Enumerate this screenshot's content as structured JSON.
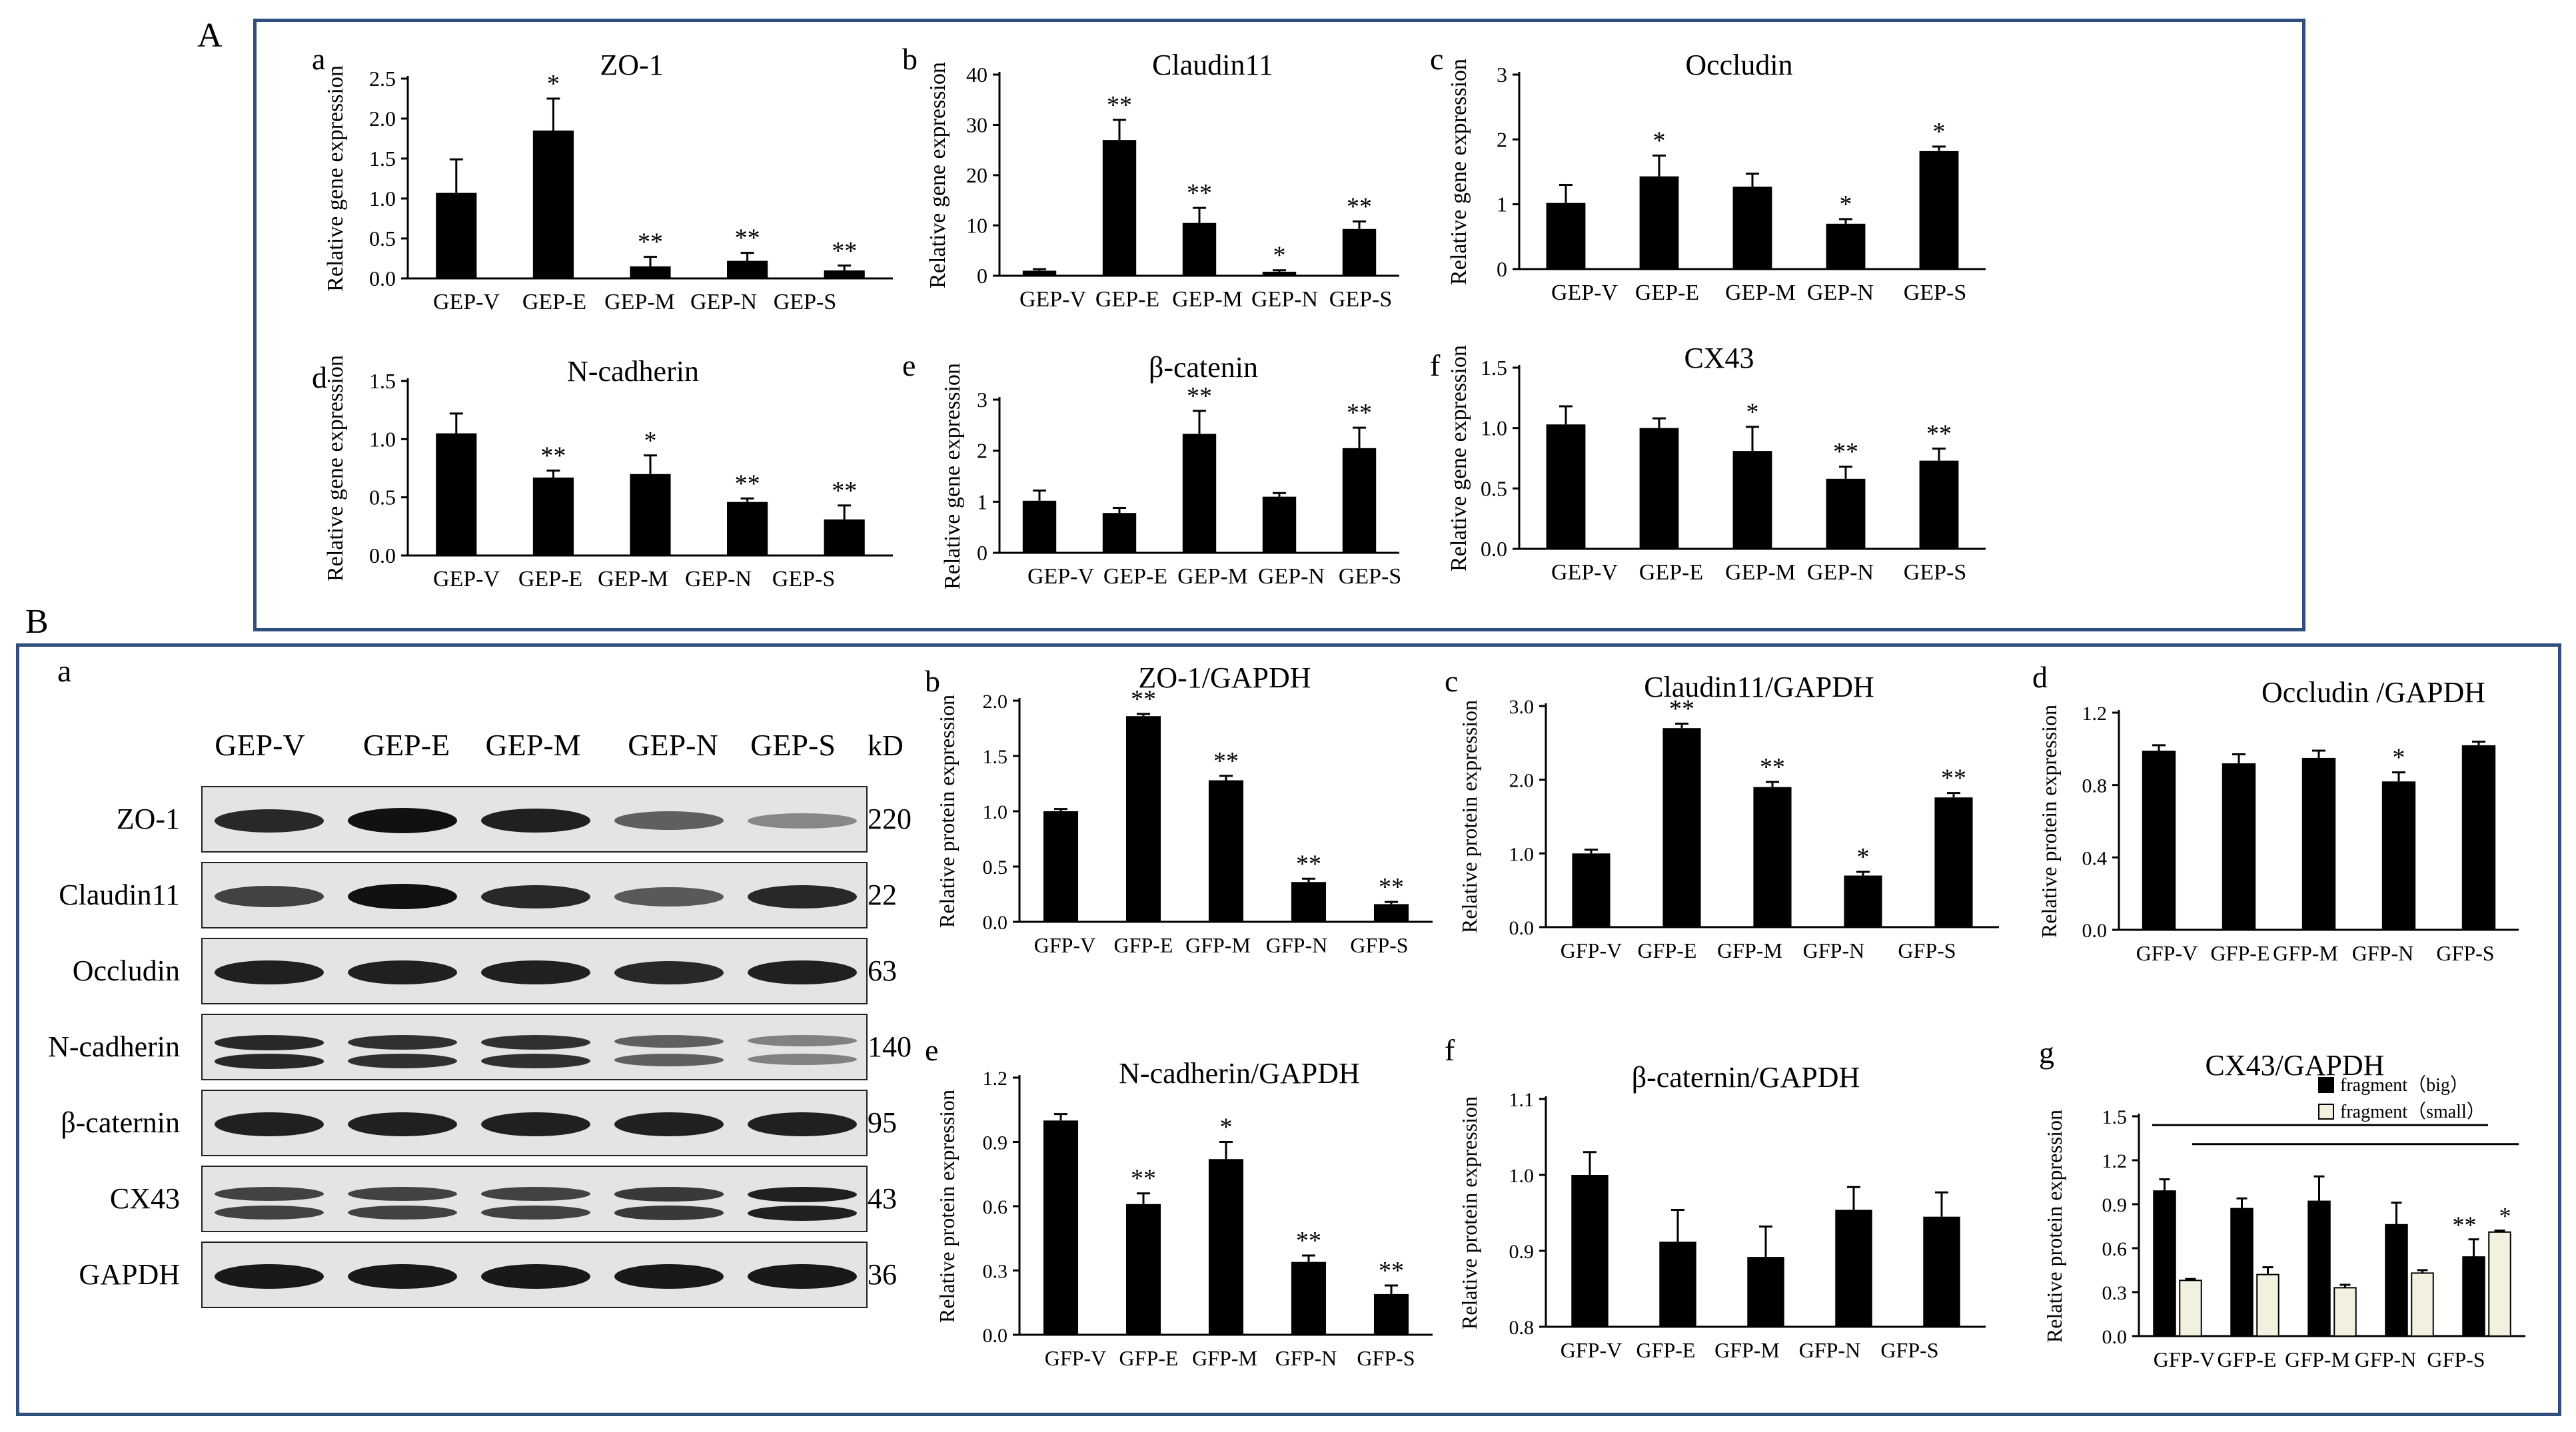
{
  "sections": {
    "A": {
      "label": "A"
    },
    "B": {
      "label": "B"
    }
  },
  "blot": {
    "panel_letter": "a",
    "lanes": [
      "GEP-V",
      "GEP-E",
      "GEP-M",
      "GEP-N",
      "GEP-S"
    ],
    "kd_header": "kD",
    "rows": [
      {
        "name": "ZO-1",
        "kd": "220",
        "intensity": [
          0.85,
          1.0,
          0.9,
          0.5,
          0.25
        ],
        "double": false
      },
      {
        "name": "Claudin11",
        "kd": "22",
        "intensity": [
          0.7,
          1.0,
          0.85,
          0.55,
          0.85
        ],
        "double": false
      },
      {
        "name": "Occludin",
        "kd": "63",
        "intensity": [
          0.9,
          0.9,
          0.9,
          0.85,
          0.9
        ],
        "double": false
      },
      {
        "name": "N-cadherin",
        "kd": "140",
        "intensity": [
          0.85,
          0.8,
          0.8,
          0.5,
          0.3
        ],
        "double": true
      },
      {
        "name": "β-caternin",
        "kd": "95",
        "intensity": [
          0.9,
          0.9,
          0.9,
          0.9,
          0.9
        ],
        "double": false
      },
      {
        "name": "CX43",
        "kd": "43",
        "intensity": [
          0.7,
          0.7,
          0.7,
          0.75,
          0.9
        ],
        "double": true
      },
      {
        "name": "GAPDH",
        "kd": "36",
        "intensity": [
          0.95,
          0.95,
          0.95,
          0.95,
          0.95
        ],
        "double": false
      }
    ]
  },
  "colors": {
    "bar": "#000000",
    "bar_light": "#f2f1e0",
    "frame": "#2f4f7f",
    "blot_bg": "#e4e4e4"
  },
  "chart_data": [
    {
      "id": "Aa",
      "type": "bar",
      "panel_letter": "a",
      "title": "ZO-1",
      "ylabel": "Relative gene expression",
      "categories": [
        "GEP-V",
        "GEP-E",
        "GEP-M",
        "GEP-N",
        "GEP-S"
      ],
      "values": [
        1.07,
        1.85,
        0.15,
        0.22,
        0.1
      ],
      "errors": [
        0.42,
        0.4,
        0.12,
        0.1,
        0.06
      ],
      "sig": [
        "",
        "*",
        "**",
        "**",
        "**"
      ],
      "ylim": [
        0,
        2.5
      ],
      "yticks": [
        "0.0",
        "0.5",
        "1.0",
        "1.5",
        "2.0",
        "2.5"
      ]
    },
    {
      "id": "Ab",
      "type": "bar",
      "panel_letter": "b",
      "title": "Claudin11",
      "ylabel": "Relative gene expression",
      "categories": [
        "GEP-V",
        "GEP-E",
        "GEP-M",
        "GEP-N",
        "GEP-S"
      ],
      "values": [
        1,
        27,
        10.5,
        0.8,
        9.3
      ],
      "errors": [
        0.3,
        4,
        3,
        0.3,
        1.5
      ],
      "sig": [
        "",
        "**",
        "**",
        "*",
        "**"
      ],
      "ylim": [
        0,
        40
      ],
      "yticks": [
        "0",
        "10",
        "20",
        "30",
        "40"
      ]
    },
    {
      "id": "Ac",
      "type": "bar",
      "panel_letter": "c",
      "title": "Occludin",
      "ylabel": "Relative gene expression",
      "categories": [
        "GEP-V",
        "GEP-E",
        "GEP-M",
        "GEP-N",
        "GEP-S"
      ],
      "values": [
        1.02,
        1.43,
        1.27,
        0.7,
        1.82
      ],
      "errors": [
        0.28,
        0.32,
        0.2,
        0.07,
        0.07
      ],
      "sig": [
        "",
        "*",
        "",
        "*",
        "*"
      ],
      "ylim": [
        0,
        3
      ],
      "yticks": [
        "0",
        "1",
        "2",
        "3"
      ]
    },
    {
      "id": "Ad",
      "type": "bar",
      "panel_letter": "d",
      "title": "N-cadherin",
      "ylabel": "Relative gene expression",
      "categories": [
        "GEP-V",
        "GEP-E",
        "GEP-M",
        "GEP-N",
        "GEP-S"
      ],
      "values": [
        1.05,
        0.67,
        0.7,
        0.46,
        0.31
      ],
      "errors": [
        0.17,
        0.06,
        0.16,
        0.03,
        0.12
      ],
      "sig": [
        "",
        "**",
        "*",
        "**",
        "**"
      ],
      "ylim": [
        0,
        1.5
      ],
      "yticks": [
        "0.0",
        "0.5",
        "1.0",
        "1.5"
      ]
    },
    {
      "id": "Ae",
      "type": "bar",
      "panel_letter": "e",
      "title": "β-catenin",
      "ylabel": "Relative gene expression",
      "categories": [
        "GEP-V",
        "GEP-E",
        "GEP-M",
        "GEP-N",
        "GEP-S"
      ],
      "values": [
        1.02,
        0.78,
        2.33,
        1.1,
        2.05
      ],
      "errors": [
        0.2,
        0.1,
        0.45,
        0.07,
        0.4
      ],
      "sig": [
        "",
        "",
        "**",
        "",
        "**"
      ],
      "ylim": [
        0,
        3
      ],
      "yticks": [
        "0",
        "1",
        "2",
        "3"
      ]
    },
    {
      "id": "Af",
      "type": "bar",
      "panel_letter": "f",
      "title": "CX43",
      "ylabel": "Relative gene expression",
      "categories": [
        "GEP-V",
        "GEP-E",
        "GEP-M",
        "GEP-N",
        "GEP-S"
      ],
      "values": [
        1.03,
        1.0,
        0.81,
        0.58,
        0.73
      ],
      "errors": [
        0.15,
        0.08,
        0.2,
        0.1,
        0.1
      ],
      "sig": [
        "",
        "",
        "*",
        "**",
        "**"
      ],
      "ylim": [
        0,
        1.5
      ],
      "yticks": [
        "0.0",
        "0.5",
        "1.0",
        "1.5"
      ]
    },
    {
      "id": "Bb",
      "type": "bar",
      "panel_letter": "b",
      "title": "ZO-1/GAPDH",
      "ylabel": "Relative protein expression",
      "categories": [
        "GFP-V",
        "GFP-E",
        "GFP-M",
        "GFP-N",
        "GFP-S"
      ],
      "values": [
        1.0,
        1.86,
        1.28,
        0.36,
        0.16
      ],
      "errors": [
        0.02,
        0.02,
        0.04,
        0.03,
        0.02
      ],
      "sig": [
        "",
        "**",
        "**",
        "**",
        "**"
      ],
      "ylim": [
        0,
        2.0
      ],
      "yticks": [
        "0.0",
        "0.5",
        "1.0",
        "1.5",
        "2.0"
      ]
    },
    {
      "id": "Bc",
      "type": "bar",
      "panel_letter": "c",
      "title": "Claudin11/GAPDH",
      "ylabel": "Relative protein expression",
      "categories": [
        "GFP-V",
        "GFP-E",
        "GFP-M",
        "GFP-N",
        "GFP-S"
      ],
      "values": [
        1.0,
        2.7,
        1.9,
        0.7,
        1.76
      ],
      "errors": [
        0.05,
        0.06,
        0.07,
        0.05,
        0.06
      ],
      "sig": [
        "",
        "**",
        "**",
        "*",
        "**"
      ],
      "ylim": [
        0,
        3.0
      ],
      "yticks": [
        "0.0",
        "1.0",
        "2.0",
        "3.0"
      ]
    },
    {
      "id": "Bd",
      "type": "bar",
      "panel_letter": "d",
      "title": "Occludin /GAPDH",
      "ylabel": "Relative protein expression",
      "categories": [
        "GFP-V",
        "GFP-E",
        "GFP-M",
        "GFP-N",
        "GFP-S"
      ],
      "values": [
        0.99,
        0.92,
        0.95,
        0.82,
        1.02
      ],
      "errors": [
        0.03,
        0.05,
        0.04,
        0.05,
        0.02
      ],
      "sig": [
        "",
        "",
        "",
        "*",
        ""
      ],
      "ylim": [
        0,
        1.2
      ],
      "yticks": [
        "0.0",
        "0.4",
        "0.8",
        "1.2"
      ]
    },
    {
      "id": "Be",
      "type": "bar",
      "panel_letter": "e",
      "title": "N-cadherin/GAPDH",
      "ylabel": "Relative protein expression",
      "categories": [
        "GFP-V",
        "GFP-E",
        "GFP-M",
        "GFP-N",
        "GFP-S"
      ],
      "values": [
        1.0,
        0.61,
        0.82,
        0.34,
        0.19
      ],
      "errors": [
        0.03,
        0.05,
        0.08,
        0.03,
        0.04
      ],
      "sig": [
        "",
        "**",
        "*",
        "**",
        "**"
      ],
      "ylim": [
        0,
        1.2
      ],
      "yticks": [
        "0.0",
        "0.3",
        "0.6",
        "0.9",
        "1.2"
      ]
    },
    {
      "id": "Bf",
      "type": "bar",
      "panel_letter": "f",
      "title": "β-caternin/GAPDH",
      "ylabel": "Relative protein expression",
      "categories": [
        "GFP-V",
        "GFP-E",
        "GFP-M",
        "GFP-N",
        "GFP-S"
      ],
      "values": [
        1.0,
        0.912,
        0.892,
        0.954,
        0.945
      ],
      "errors": [
        0.03,
        0.042,
        0.04,
        0.03,
        0.032
      ],
      "sig": [
        "",
        "",
        "",
        "",
        ""
      ],
      "ylim": [
        0.8,
        1.1
      ],
      "yticks": [
        "0.8",
        "0.9",
        "1.0",
        "1.1"
      ]
    },
    {
      "id": "Bg",
      "type": "groupbar",
      "panel_letter": "g",
      "title": "CX43/GAPDH",
      "ylabel": "Relative protein expression",
      "categories": [
        "GFP-V",
        "GFP-E",
        "GFP-M",
        "GFP-N",
        "GFP-S"
      ],
      "series": [
        {
          "name": "fragment（big）",
          "values": [
            0.99,
            0.87,
            0.92,
            0.76,
            0.54
          ],
          "errors": [
            0.08,
            0.07,
            0.17,
            0.15,
            0.12
          ],
          "sig": [
            "",
            "",
            "",
            "",
            "**"
          ]
        },
        {
          "name": "fragment（small）",
          "values": [
            0.38,
            0.42,
            0.33,
            0.43,
            0.71
          ],
          "errors": [
            0.01,
            0.05,
            0.02,
            0.02,
            0.01
          ],
          "sig": [
            "",
            "",
            "",
            "",
            "*"
          ]
        }
      ],
      "ylim": [
        0,
        1.5
      ],
      "yticks": [
        "0.0",
        "0.3",
        "0.6",
        "0.9",
        "1.2",
        "1.5"
      ]
    }
  ]
}
